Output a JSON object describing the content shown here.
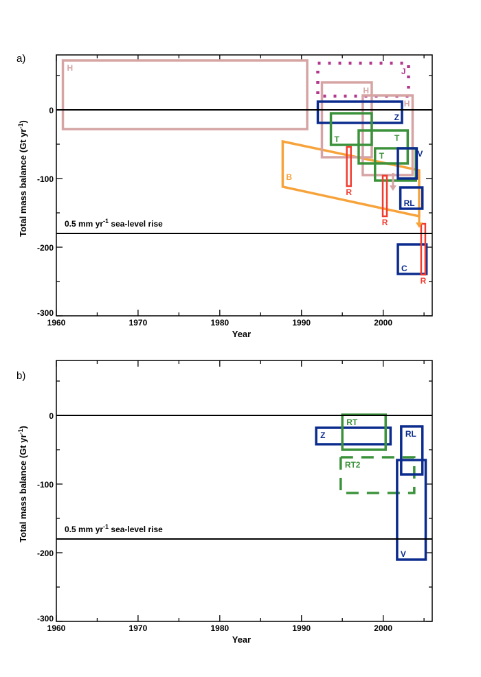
{
  "chart_data": [
    {
      "type": "box-range",
      "panel_label": "a)",
      "xlabel": "Year",
      "ylabel": "Total mass balance (Gt yr-1)",
      "xlim": [
        1960,
        2006
      ],
      "ylim": [
        -300,
        80
      ],
      "xticks": [
        1960,
        1970,
        1980,
        1990,
        2000
      ],
      "yticks": [
        0,
        -100,
        -200,
        -300
      ],
      "reference_lines": [
        {
          "y": 0
        },
        {
          "y": -180,
          "label": "0.5 mm yr",
          "label_sup": "-1",
          "label_rest": " sea-level rise"
        }
      ],
      "boxes": [
        {
          "label": "H",
          "x": [
            1960.8,
            1990.7
          ],
          "y": [
            -28,
            72
          ],
          "color": "#d6a4a4",
          "style": "solid",
          "label_pos": "top-left"
        },
        {
          "label": "J",
          "x": [
            1992.0,
            2003.1
          ],
          "y": [
            20,
            68
          ],
          "color": "#b2388f",
          "style": "dotted",
          "label_pos": "top-right"
        },
        {
          "label": "H",
          "x": [
            1992.5,
            1998.6
          ],
          "y": [
            -69,
            40
          ],
          "color": "#d6a4a4",
          "style": "solid",
          "label_pos": "top-right"
        },
        {
          "label": "H",
          "x": [
            1997.5,
            2003.6
          ],
          "y": [
            -95,
            21
          ],
          "color": "#d6a4a4",
          "style": "solid",
          "label_pos": "top-right"
        },
        {
          "label": "Z",
          "x": [
            1992.0,
            2002.3
          ],
          "y": [
            -19,
            12
          ],
          "color": "#0b2c8e",
          "style": "solid",
          "label_pos": "bottom-right"
        },
        {
          "label": "T",
          "x": [
            1993.6,
            1998.6
          ],
          "y": [
            -51,
            -5
          ],
          "color": "#3b923b",
          "style": "solid",
          "label_pos": "bottom-left"
        },
        {
          "label": "T",
          "x": [
            1997.0,
            2003.0
          ],
          "y": [
            -78,
            -30
          ],
          "color": "#3b923b",
          "style": "solid",
          "label_pos": "top-right-inside"
        },
        {
          "label": "T",
          "x": [
            1999.0,
            2004.0
          ],
          "y": [
            -103,
            -56
          ],
          "color": "#3b923b",
          "style": "solid",
          "label_pos": "top-left"
        },
        {
          "label": "V",
          "x": [
            2001.8,
            2004.1
          ],
          "y": [
            -100,
            -56
          ],
          "color": "#0b2c8e",
          "style": "solid",
          "label_pos": "outside-right"
        },
        {
          "label": "RL",
          "x": [
            2002.1,
            2004.8
          ],
          "y": [
            -144,
            -113
          ],
          "color": "#0b2c8e",
          "style": "solid",
          "label_pos": "bottom-left"
        },
        {
          "label": "C",
          "x": [
            2001.8,
            2005.3
          ],
          "y": [
            -239,
            -196
          ],
          "color": "#0b2c8e",
          "style": "solid",
          "label_pos": "bottom-left"
        }
      ],
      "bars": [
        {
          "label": "R",
          "x": 1995.8,
          "y": [
            -111,
            -54
          ],
          "color": "#f23b2f"
        },
        {
          "label": "R",
          "x": 2000.2,
          "y": [
            -155,
            -96
          ],
          "color": "#f23b2f"
        },
        {
          "label": "R",
          "x": 2004.9,
          "y": [
            -240,
            -166
          ],
          "color": "#f23b2f"
        }
      ],
      "parallelograms": [
        {
          "label": "B",
          "x": [
            1987.7,
            2004.4
          ],
          "y_start": [
            -112,
            -46
          ],
          "y_end": [
            -155,
            -88
          ],
          "color": "#f7a33c"
        }
      ],
      "arrows": [
        {
          "x": 2004.4,
          "from": -155,
          "to": -172,
          "color": "#f7a33c"
        },
        {
          "x": 2001.2,
          "from": -92,
          "to": -118,
          "color": "#d6a4a4"
        }
      ]
    },
    {
      "type": "box-range",
      "panel_label": "b)",
      "xlabel": "Year",
      "ylabel": "Total mass balance (Gt yr-1)",
      "xlim": [
        1960,
        2006
      ],
      "ylim": [
        -300,
        80
      ],
      "xticks": [
        1960,
        1970,
        1980,
        1990,
        2000
      ],
      "yticks": [
        0,
        -100,
        -200,
        -300
      ],
      "reference_lines": [
        {
          "y": 0
        },
        {
          "y": -180,
          "label": "0.5 mm yr",
          "label_sup": "-1",
          "label_rest": " sea-level rise"
        }
      ],
      "boxes": [
        {
          "label": "Z",
          "x": [
            1991.8,
            2000.9
          ],
          "y": [
            -42,
            -18
          ],
          "color": "#0b2c8e",
          "style": "solid",
          "label_pos": "top-left"
        },
        {
          "label": "RT",
          "x": [
            1995.0,
            2000.3
          ],
          "y": [
            -50,
            1
          ],
          "color": "#3b923b",
          "style": "solid",
          "label_pos": "top-left"
        },
        {
          "label": "RT2",
          "x": [
            1994.8,
            2003.8
          ],
          "y": [
            -113,
            -61
          ],
          "color": "#3b923b",
          "style": "dashed",
          "label_pos": "top-left"
        },
        {
          "label": "RL",
          "x": [
            2002.2,
            2004.8
          ],
          "y": [
            -86,
            -16
          ],
          "color": "#0b2c8e",
          "style": "solid",
          "label_pos": "top-left"
        },
        {
          "label": "V",
          "x": [
            2001.7,
            2005.2
          ],
          "y": [
            -210,
            -65
          ],
          "color": "#0b2c8e",
          "style": "solid",
          "label_pos": "bottom-left"
        }
      ],
      "bars": [],
      "parallelograms": [],
      "arrows": []
    }
  ]
}
